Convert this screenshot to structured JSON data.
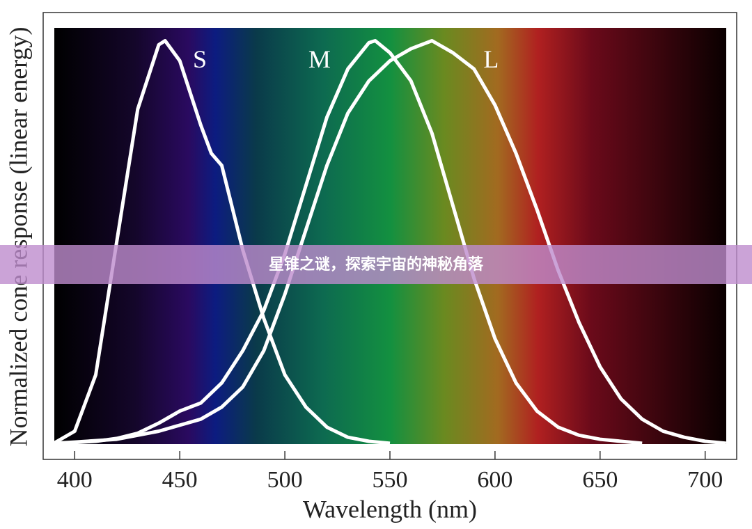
{
  "chart_data": {
    "type": "line",
    "xlabel": "Wavelength (nm)",
    "ylabel": "Normalized cone response (linear energy)",
    "xlim": [
      385,
      715
    ],
    "ylim": [
      -0.04,
      1.07
    ],
    "xticks": [
      400,
      450,
      500,
      550,
      600,
      650,
      700
    ],
    "series": [
      {
        "name": "S",
        "color": "#ffffff",
        "x": [
          390,
          400,
          410,
          420,
          430,
          440,
          443,
          450,
          460,
          465,
          470,
          480,
          490,
          500,
          510,
          520,
          530,
          540,
          550
        ],
        "values": [
          0,
          0.03,
          0.17,
          0.5,
          0.83,
          0.99,
          1.0,
          0.95,
          0.79,
          0.72,
          0.69,
          0.48,
          0.31,
          0.17,
          0.09,
          0.04,
          0.015,
          0.005,
          0
        ]
      },
      {
        "name": "M",
        "color": "#ffffff",
        "x": [
          390,
          400,
          410,
          420,
          430,
          440,
          450,
          460,
          470,
          480,
          490,
          500,
          510,
          520,
          530,
          540,
          543,
          550,
          560,
          570,
          580,
          590,
          600,
          610,
          620,
          630,
          640,
          650,
          660,
          670
        ],
        "values": [
          0,
          0.002,
          0.005,
          0.012,
          0.025,
          0.05,
          0.08,
          0.1,
          0.15,
          0.23,
          0.33,
          0.47,
          0.64,
          0.81,
          0.93,
          0.995,
          1.0,
          0.97,
          0.9,
          0.77,
          0.59,
          0.41,
          0.26,
          0.15,
          0.08,
          0.04,
          0.02,
          0.01,
          0.005,
          0
        ]
      },
      {
        "name": "L",
        "color": "#ffffff",
        "x": [
          390,
          400,
          420,
          440,
          460,
          470,
          480,
          490,
          500,
          510,
          520,
          530,
          540,
          550,
          560,
          570,
          580,
          590,
          600,
          610,
          620,
          630,
          640,
          650,
          660,
          670,
          680,
          690,
          700,
          710
        ],
        "values": [
          0,
          0.003,
          0.01,
          0.03,
          0.06,
          0.09,
          0.14,
          0.23,
          0.37,
          0.53,
          0.69,
          0.82,
          0.9,
          0.95,
          0.98,
          1.0,
          0.97,
          0.93,
          0.84,
          0.72,
          0.58,
          0.43,
          0.3,
          0.19,
          0.11,
          0.06,
          0.03,
          0.015,
          0.005,
          0
        ]
      }
    ]
  },
  "banner": {
    "title": "星锥之谜，探索宇宙的神秘角落"
  }
}
